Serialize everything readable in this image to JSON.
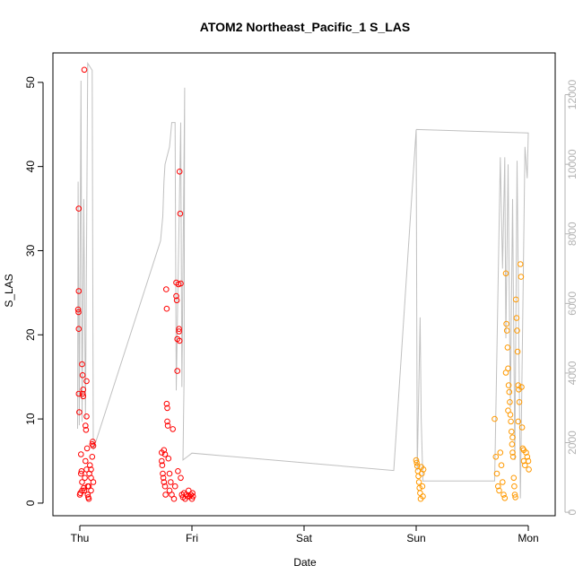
{
  "chart_data": {
    "type": "scatter",
    "title": "ATOM2 Northeast_Pacific_1 S_LAS",
    "xlabel": "Date",
    "ylabel": "S_LAS",
    "x_unit": "days since Thu 00:00",
    "x_ticks": [
      {
        "value": 0,
        "label": "Thu"
      },
      {
        "value": 1,
        "label": "Fri"
      },
      {
        "value": 2,
        "label": "Sat"
      },
      {
        "value": 3,
        "label": "Sun"
      },
      {
        "value": 4,
        "label": "Mon"
      }
    ],
    "xlim": [
      -0.24,
      4.24
    ],
    "ylim": [
      -1.5,
      53.5
    ],
    "y_ticks": [
      0,
      10,
      20,
      30,
      40,
      50
    ],
    "y2lim": [
      -100,
      13200
    ],
    "y2_ticks": [
      0,
      2000,
      4000,
      6000,
      8000,
      10000,
      12000
    ],
    "grid": false,
    "colors": {
      "red_series": "#ff0000",
      "orange_series": "#ff9900",
      "line": "#c0c0c0"
    },
    "series": [
      {
        "color": "#ff0000",
        "marker": "open-circle",
        "points": [
          [
            -0.01,
            35.0
          ],
          [
            -0.01,
            25.2
          ],
          [
            -0.015,
            23.0
          ],
          [
            -0.012,
            22.7
          ],
          [
            -0.01,
            20.7
          ],
          [
            -0.01,
            13.0
          ],
          [
            -0.005,
            10.8
          ],
          [
            0.0,
            1.0
          ],
          [
            0.005,
            1.2
          ],
          [
            0.01,
            3.5
          ],
          [
            0.01,
            5.8
          ],
          [
            0.015,
            3.8
          ],
          [
            0.02,
            1.5
          ],
          [
            0.02,
            16.5
          ],
          [
            0.025,
            15.2
          ],
          [
            0.025,
            13.0
          ],
          [
            0.03,
            13.5
          ],
          [
            0.03,
            12.7
          ],
          [
            0.035,
            1.8
          ],
          [
            0.04,
            51.5
          ],
          [
            0.045,
            3.0
          ],
          [
            0.05,
            5.0
          ],
          [
            0.05,
            9.2
          ],
          [
            0.055,
            8.7
          ],
          [
            0.06,
            10.3
          ],
          [
            0.06,
            14.5
          ],
          [
            0.065,
            6.5
          ],
          [
            0.07,
            2.0
          ],
          [
            0.07,
            1.0
          ],
          [
            0.075,
            0.7
          ],
          [
            0.08,
            0.5
          ],
          [
            0.085,
            3.5
          ],
          [
            0.09,
            4.5
          ],
          [
            0.1,
            4.0
          ],
          [
            0.1,
            3.0
          ],
          [
            0.11,
            5.5
          ],
          [
            0.11,
            7.0
          ],
          [
            0.115,
            7.3
          ],
          [
            0.12,
            6.8
          ],
          [
            0.12,
            2.5
          ],
          [
            0.02,
            2.5
          ],
          [
            0.04,
            1.5
          ],
          [
            0.06,
            4.0
          ],
          [
            0.08,
            2.0
          ],
          [
            0.1,
            1.5
          ],
          [
            0.73,
            6.0
          ],
          [
            0.73,
            5.0
          ],
          [
            0.735,
            4.5
          ],
          [
            0.74,
            3.5
          ],
          [
            0.745,
            3.0
          ],
          [
            0.75,
            2.5
          ],
          [
            0.75,
            6.3
          ],
          [
            0.76,
            5.8
          ],
          [
            0.76,
            2.0
          ],
          [
            0.765,
            1.0
          ],
          [
            0.77,
            25.4
          ],
          [
            0.775,
            23.1
          ],
          [
            0.775,
            11.8
          ],
          [
            0.78,
            11.3
          ],
          [
            0.78,
            9.7
          ],
          [
            0.785,
            9.2
          ],
          [
            0.79,
            5.3
          ],
          [
            0.8,
            3.5
          ],
          [
            0.8,
            1.5
          ],
          [
            0.81,
            2.5
          ],
          [
            0.82,
            1.0
          ],
          [
            0.83,
            8.8
          ],
          [
            0.84,
            0.5
          ],
          [
            0.85,
            2.0
          ],
          [
            0.86,
            26.2
          ],
          [
            0.86,
            24.6
          ],
          [
            0.865,
            24.1
          ],
          [
            0.87,
            19.5
          ],
          [
            0.87,
            15.7
          ],
          [
            0.875,
            3.8
          ],
          [
            0.88,
            26.0
          ],
          [
            0.885,
            20.7
          ],
          [
            0.885,
            20.4
          ],
          [
            0.89,
            19.3
          ],
          [
            0.89,
            39.4
          ],
          [
            0.895,
            34.4
          ],
          [
            0.9,
            26.1
          ],
          [
            0.9,
            3.0
          ],
          [
            0.91,
            1.0
          ],
          [
            0.92,
            0.7
          ],
          [
            0.93,
            1.2
          ],
          [
            0.94,
            0.5
          ],
          [
            0.95,
            1.0
          ],
          [
            0.96,
            0.8
          ],
          [
            0.97,
            1.5
          ],
          [
            0.98,
            0.8
          ],
          [
            0.99,
            1.0
          ],
          [
            1.0,
            0.5
          ],
          [
            1.005,
            1.2
          ],
          [
            1.01,
            0.8
          ]
        ]
      },
      {
        "color": "#ff9900",
        "marker": "open-circle",
        "points": [
          [
            3.0,
            5.1
          ],
          [
            3.005,
            4.8
          ],
          [
            3.01,
            4.4
          ],
          [
            3.015,
            3.8
          ],
          [
            3.02,
            3.2
          ],
          [
            3.025,
            2.5
          ],
          [
            3.03,
            1.8
          ],
          [
            3.035,
            1.2
          ],
          [
            3.04,
            0.5
          ],
          [
            3.045,
            4.3
          ],
          [
            3.05,
            3.5
          ],
          [
            3.055,
            2.0
          ],
          [
            3.06,
            0.8
          ],
          [
            3.065,
            4.0
          ],
          [
            3.7,
            10.0
          ],
          [
            3.71,
            5.5
          ],
          [
            3.72,
            3.5
          ],
          [
            3.73,
            2.0
          ],
          [
            3.74,
            1.5
          ],
          [
            3.75,
            6.0
          ],
          [
            3.76,
            4.5
          ],
          [
            3.77,
            2.5
          ],
          [
            3.78,
            1.0
          ],
          [
            3.79,
            0.6
          ],
          [
            3.8,
            27.3
          ],
          [
            3.805,
            21.3
          ],
          [
            3.81,
            20.5
          ],
          [
            3.815,
            18.5
          ],
          [
            3.82,
            16.0
          ],
          [
            3.825,
            14.0
          ],
          [
            3.83,
            13.2
          ],
          [
            3.835,
            12.0
          ],
          [
            3.84,
            10.5
          ],
          [
            3.845,
            9.7
          ],
          [
            3.85,
            8.5
          ],
          [
            3.855,
            7.0
          ],
          [
            3.86,
            6.0
          ],
          [
            3.865,
            5.5
          ],
          [
            3.87,
            3.0
          ],
          [
            3.875,
            2.0
          ],
          [
            3.88,
            1.0
          ],
          [
            3.885,
            0.7
          ],
          [
            3.89,
            24.2
          ],
          [
            3.895,
            22.0
          ],
          [
            3.9,
            20.5
          ],
          [
            3.905,
            18.0
          ],
          [
            3.91,
            14.0
          ],
          [
            3.915,
            13.5
          ],
          [
            3.92,
            12.0
          ],
          [
            3.93,
            28.4
          ],
          [
            3.935,
            26.9
          ],
          [
            3.94,
            13.8
          ],
          [
            3.945,
            9.0
          ],
          [
            3.95,
            6.5
          ],
          [
            3.96,
            5.0
          ],
          [
            3.97,
            4.5
          ],
          [
            3.98,
            6.0
          ],
          [
            3.99,
            5.5
          ],
          [
            4.0,
            5.0
          ],
          [
            4.005,
            4.0
          ],
          [
            3.8,
            15.5
          ],
          [
            3.82,
            11.0
          ],
          [
            3.86,
            7.8
          ],
          [
            3.91,
            9.7
          ],
          [
            3.96,
            6.3
          ]
        ]
      }
    ],
    "line_series": {
      "axis": "right",
      "color": "#c0c0c0",
      "points": [
        [
          -0.02,
          2400
        ],
        [
          -0.015,
          9500
        ],
        [
          -0.005,
          2500
        ],
        [
          0.01,
          12400
        ],
        [
          0.02,
          2600
        ],
        [
          0.035,
          9000
        ],
        [
          0.05,
          2700
        ],
        [
          0.07,
          12900
        ],
        [
          0.11,
          12700
        ],
        [
          0.12,
          1800
        ],
        [
          0.72,
          7800
        ],
        [
          0.74,
          8500
        ],
        [
          0.75,
          9500
        ],
        [
          0.76,
          10000
        ],
        [
          0.8,
          10500
        ],
        [
          0.82,
          11200
        ],
        [
          0.85,
          11200
        ],
        [
          0.86,
          3500
        ],
        [
          0.9,
          11200
        ],
        [
          0.91,
          3600
        ],
        [
          0.935,
          12200
        ],
        [
          0.93,
          3800
        ],
        [
          0.92,
          1500
        ],
        [
          1.0,
          1700
        ],
        [
          2.8,
          1200
        ],
        [
          3.0,
          11000
        ],
        [
          3.01,
          1200
        ],
        [
          3.035,
          5600
        ],
        [
          3.045,
          2700
        ],
        [
          3.06,
          900
        ],
        [
          3.7,
          900
        ],
        [
          3.75,
          10200
        ],
        [
          3.77,
          7000
        ],
        [
          3.79,
          10200
        ],
        [
          3.8,
          5000
        ],
        [
          3.82,
          10000
        ],
        [
          3.84,
          3000
        ],
        [
          3.86,
          9000
        ],
        [
          3.88,
          1500
        ],
        [
          3.9,
          10100
        ],
        [
          3.93,
          400
        ],
        [
          3.97,
          10500
        ],
        [
          3.99,
          9600
        ],
        [
          4.0,
          10900
        ],
        [
          3.0,
          11000
        ]
      ]
    }
  }
}
